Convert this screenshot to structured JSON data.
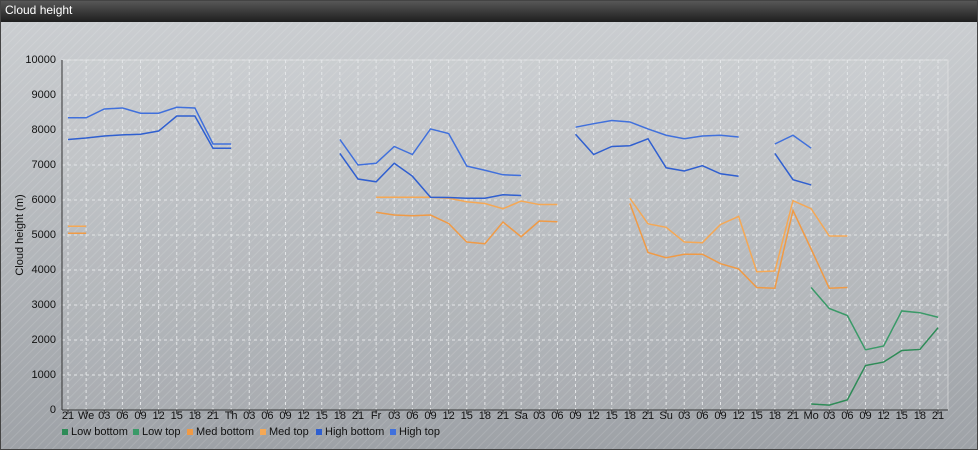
{
  "chart_data": {
    "type": "line",
    "title": "Cloud height",
    "y_label": "Cloud height (m)",
    "categories": [
      "21",
      "We",
      "03",
      "06",
      "09",
      "12",
      "15",
      "18",
      "21",
      "Th",
      "03",
      "06",
      "09",
      "12",
      "15",
      "18",
      "21",
      "Fr",
      "03",
      "06",
      "09",
      "12",
      "15",
      "18",
      "21",
      "Sa",
      "03",
      "06",
      "09",
      "12",
      "15",
      "18",
      "21",
      "Su",
      "03",
      "06",
      "09",
      "12",
      "15",
      "18",
      "21",
      "Mo",
      "03",
      "06",
      "09",
      "12",
      "15",
      "18",
      "21"
    ],
    "ylim": [
      0,
      10000
    ],
    "yticks": [
      0,
      1000,
      2000,
      3000,
      4000,
      5000,
      6000,
      7000,
      8000,
      9000,
      10000
    ],
    "grid": true,
    "legend": "bottom",
    "series": [
      {
        "name": "Low bottom",
        "color": "#2e8b57",
        "values": [
          null,
          null,
          null,
          null,
          null,
          null,
          null,
          null,
          null,
          null,
          null,
          null,
          null,
          null,
          null,
          null,
          null,
          null,
          null,
          null,
          null,
          null,
          null,
          null,
          null,
          null,
          null,
          null,
          null,
          null,
          null,
          null,
          null,
          null,
          null,
          null,
          null,
          null,
          null,
          null,
          null,
          170,
          140,
          290,
          1270,
          1370,
          1700,
          1730,
          2350
        ]
      },
      {
        "name": "Low top",
        "color": "#3a9a68",
        "values": [
          null,
          null,
          null,
          null,
          null,
          null,
          null,
          null,
          null,
          null,
          null,
          null,
          null,
          null,
          null,
          null,
          null,
          null,
          null,
          null,
          null,
          null,
          null,
          null,
          null,
          null,
          null,
          null,
          null,
          null,
          null,
          null,
          null,
          null,
          null,
          null,
          null,
          null,
          null,
          null,
          null,
          3500,
          2900,
          2700,
          1720,
          1830,
          2830,
          2780,
          2650
        ]
      },
      {
        "name": "Med bottom",
        "color": "#f09a45",
        "values": [
          5050,
          5050,
          null,
          null,
          null,
          null,
          null,
          null,
          null,
          null,
          null,
          null,
          null,
          null,
          null,
          null,
          null,
          5650,
          5570,
          5550,
          5570,
          5330,
          4800,
          4750,
          5370,
          4950,
          5400,
          5380,
          null,
          null,
          null,
          5900,
          4500,
          4350,
          4450,
          4450,
          4180,
          4030,
          3500,
          3480,
          5700,
          4600,
          3480,
          3500,
          null,
          null,
          null,
          null,
          null
        ]
      },
      {
        "name": "Med top",
        "color": "#f5a855",
        "values": [
          5250,
          5250,
          null,
          null,
          null,
          null,
          null,
          null,
          null,
          null,
          null,
          null,
          null,
          null,
          null,
          null,
          null,
          6080,
          6080,
          6080,
          6080,
          6050,
          5950,
          5900,
          5750,
          5970,
          5870,
          5870,
          null,
          null,
          null,
          6050,
          5320,
          5220,
          4800,
          4780,
          5300,
          5530,
          3950,
          3970,
          5980,
          5750,
          4970,
          4970,
          null,
          null,
          null,
          null,
          null
        ]
      },
      {
        "name": "High bottom",
        "color": "#2f5fd0",
        "values": [
          7730,
          7770,
          7830,
          7860,
          7880,
          7970,
          8400,
          8400,
          7480,
          7480,
          null,
          null,
          null,
          null,
          null,
          7330,
          6600,
          6520,
          7050,
          6680,
          6080,
          6070,
          6050,
          6050,
          6150,
          6130,
          null,
          null,
          7880,
          7300,
          7530,
          7550,
          7750,
          6920,
          6830,
          6980,
          6750,
          6680,
          null,
          7330,
          6580,
          6430,
          null,
          null,
          null,
          null,
          null,
          null,
          null
        ]
      },
      {
        "name": "High top",
        "color": "#4070dc",
        "values": [
          8350,
          8350,
          8600,
          8630,
          8480,
          8480,
          8650,
          8630,
          7600,
          7600,
          null,
          null,
          null,
          null,
          null,
          7730,
          7000,
          7050,
          7530,
          7300,
          8030,
          7900,
          6970,
          6850,
          6720,
          6700,
          null,
          null,
          8080,
          8180,
          8270,
          8230,
          8030,
          7850,
          7750,
          7830,
          7850,
          7800,
          null,
          7600,
          7850,
          7480,
          null,
          null,
          null,
          null,
          null,
          null,
          null
        ]
      }
    ]
  }
}
